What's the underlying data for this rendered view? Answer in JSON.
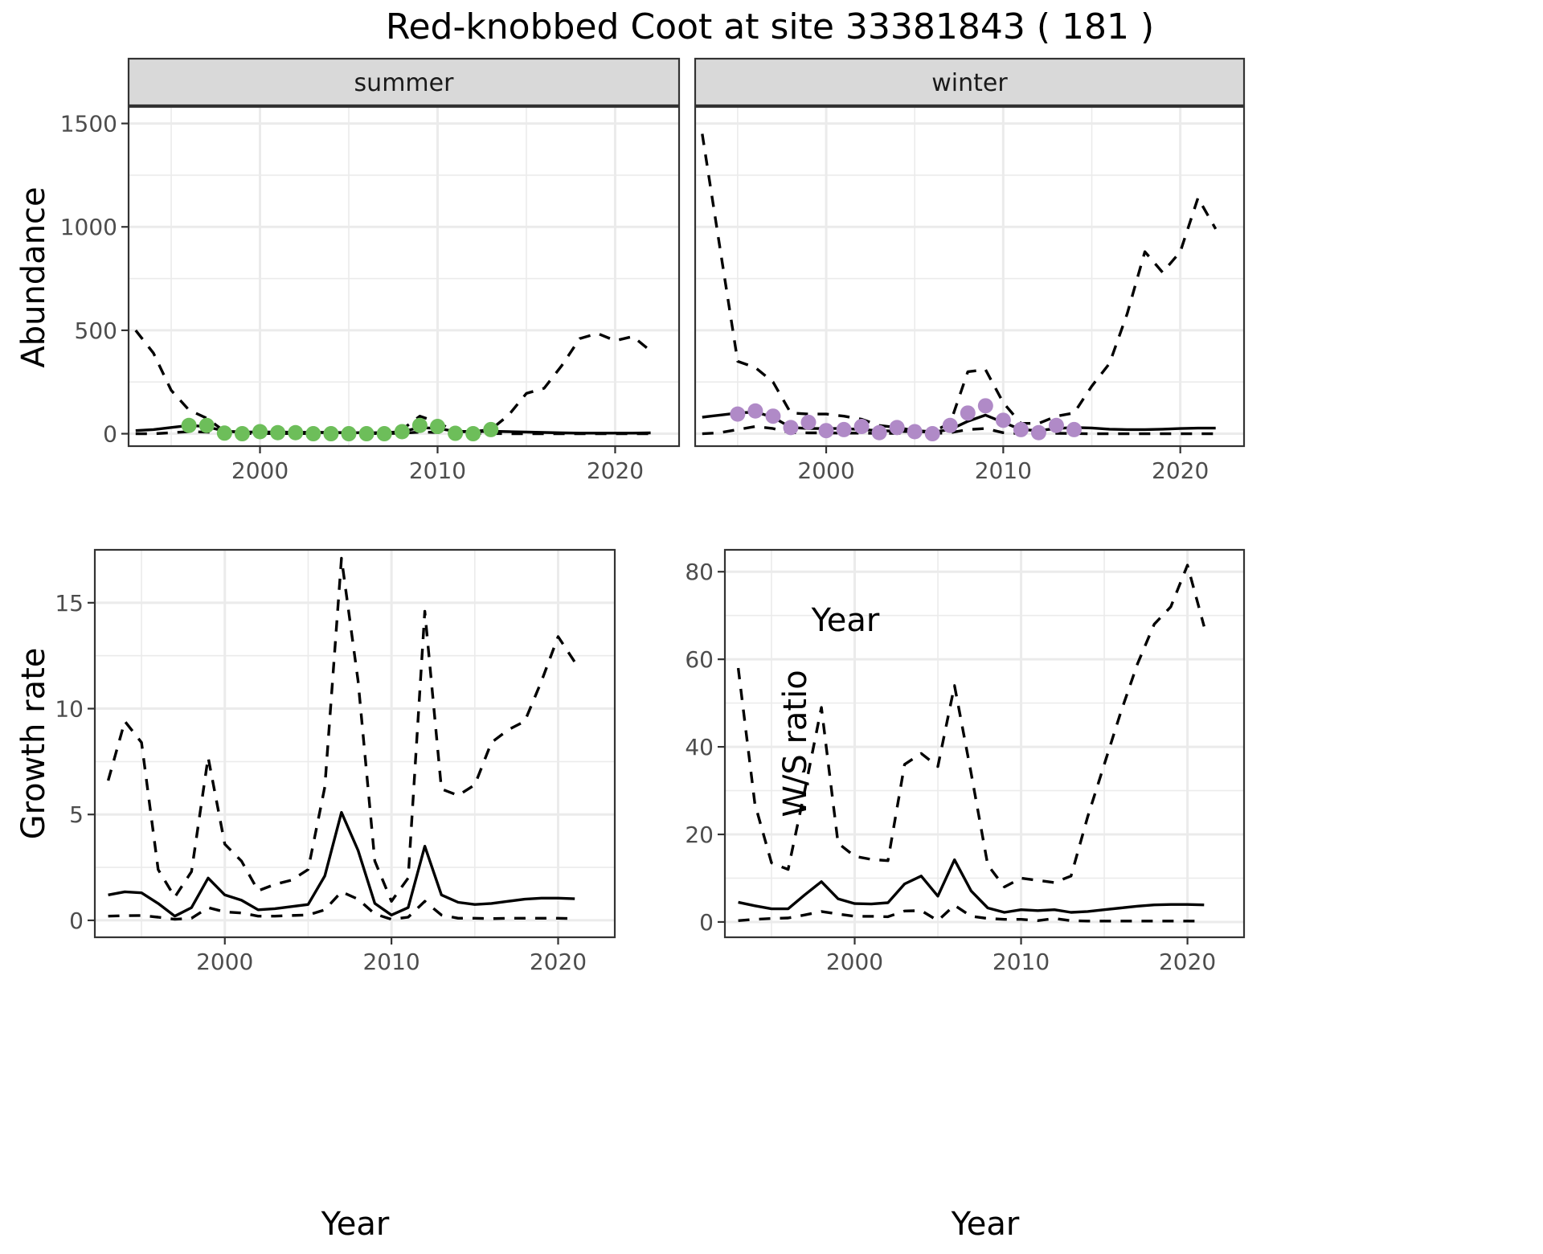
{
  "title": "Red-knobbed Coot at site 33381843 ( 181 )",
  "chart_data": [
    {
      "type": "line",
      "panel": "summer",
      "facet_label": "summer",
      "xlabel": "Year",
      "ylabel": "Abundance",
      "xlim": [
        1992.6,
        2023.6
      ],
      "ylim": [
        -60,
        1580
      ],
      "xticks": [
        2000,
        2010,
        2020
      ],
      "yticks": [
        0,
        500,
        1000,
        1500
      ],
      "grid": true,
      "point_color": "#6dbe5a",
      "x": [
        1993,
        1994,
        1995,
        1996,
        1997,
        1998,
        1999,
        2000,
        2001,
        2002,
        2003,
        2004,
        2005,
        2006,
        2007,
        2008,
        2009,
        2010,
        2011,
        2012,
        2013,
        2014,
        2015,
        2016,
        2017,
        2018,
        2019,
        2020,
        2021,
        2022
      ],
      "series": [
        {
          "name": "estimate",
          "style": "solid",
          "values": [
            15,
            20,
            30,
            40,
            35,
            12,
            8,
            8,
            8,
            7,
            6,
            6,
            5,
            5,
            5,
            10,
            30,
            25,
            12,
            10,
            12,
            10,
            8,
            6,
            4,
            3,
            3,
            3,
            3,
            4
          ]
        },
        {
          "name": "upper",
          "style": "dashed",
          "values": [
            500,
            390,
            210,
            115,
            75,
            12,
            8,
            8,
            8,
            7,
            6,
            6,
            5,
            5,
            5,
            20,
            85,
            55,
            10,
            10,
            20,
            90,
            195,
            220,
            330,
            460,
            485,
            450,
            470,
            400
          ]
        },
        {
          "name": "lower",
          "style": "dashed",
          "values": [
            0,
            0,
            5,
            10,
            8,
            2,
            1,
            1,
            1,
            1,
            1,
            1,
            1,
            1,
            1,
            2,
            8,
            6,
            1,
            1,
            1,
            0,
            0,
            0,
            0,
            0,
            0,
            0,
            0,
            0
          ]
        }
      ],
      "points": {
        "x": [
          1996,
          1997,
          1998,
          1999,
          2000,
          2001,
          2002,
          2003,
          2004,
          2005,
          2006,
          2007,
          2008,
          2009,
          2010,
          2011,
          2012,
          2013
        ],
        "y": [
          40,
          40,
          3,
          0,
          10,
          5,
          5,
          0,
          0,
          0,
          0,
          0,
          10,
          40,
          35,
          2,
          0,
          20
        ]
      }
    },
    {
      "type": "line",
      "panel": "winter",
      "facet_label": "winter",
      "xlabel": "Year",
      "ylabel": "Abundance",
      "xlim": [
        1992.6,
        2023.6
      ],
      "ylim": [
        -60,
        1580
      ],
      "xticks": [
        2000,
        2010,
        2020
      ],
      "yticks": [
        0,
        500,
        1000,
        1500
      ],
      "grid": true,
      "point_color": "#b08ac7",
      "x": [
        1993,
        1994,
        1995,
        1996,
        1997,
        1998,
        1999,
        2000,
        2001,
        2002,
        2003,
        2004,
        2005,
        2006,
        2007,
        2008,
        2009,
        2010,
        2011,
        2012,
        2013,
        2014,
        2015,
        2016,
        2017,
        2018,
        2019,
        2020,
        2021,
        2022
      ],
      "series": [
        {
          "name": "estimate",
          "style": "solid",
          "values": [
            80,
            90,
            100,
            105,
            80,
            30,
            25,
            25,
            25,
            20,
            15,
            12,
            10,
            8,
            20,
            60,
            90,
            55,
            20,
            15,
            25,
            30,
            28,
            22,
            20,
            20,
            22,
            25,
            27,
            27
          ]
        },
        {
          "name": "upper",
          "style": "dashed",
          "values": [
            1450,
            900,
            350,
            320,
            250,
            100,
            95,
            95,
            85,
            70,
            40,
            30,
            15,
            10,
            50,
            300,
            310,
            150,
            50,
            50,
            85,
            100,
            230,
            340,
            580,
            880,
            780,
            880,
            1140,
            990
          ]
        },
        {
          "name": "lower",
          "style": "dashed",
          "values": [
            0,
            5,
            20,
            35,
            25,
            5,
            4,
            4,
            3,
            3,
            2,
            2,
            2,
            1,
            5,
            20,
            25,
            5,
            1,
            1,
            2,
            1,
            0,
            0,
            0,
            0,
            0,
            0,
            0,
            0
          ]
        }
      ],
      "points": {
        "x": [
          1995,
          1996,
          1997,
          1998,
          1999,
          2000,
          2001,
          2002,
          2003,
          2004,
          2005,
          2006,
          2007,
          2008,
          2009,
          2010,
          2011,
          2012,
          2013,
          2014
        ],
        "y": [
          95,
          110,
          85,
          30,
          55,
          15,
          20,
          35,
          5,
          30,
          10,
          0,
          40,
          100,
          135,
          65,
          20,
          5,
          40,
          20
        ]
      }
    },
    {
      "type": "line",
      "panel": "growth",
      "xlabel": "Year",
      "ylabel": "Growth rate",
      "xlim": [
        1992.2,
        2023.4
      ],
      "ylim": [
        -0.8,
        17.5
      ],
      "xticks": [
        2000,
        2010,
        2020
      ],
      "yticks": [
        0,
        5,
        10,
        15
      ],
      "grid": true,
      "x": [
        1993,
        1994,
        1995,
        1996,
        1997,
        1998,
        1999,
        2000,
        2001,
        2002,
        2003,
        2004,
        2005,
        2006,
        2007,
        2008,
        2009,
        2010,
        2011,
        2012,
        2013,
        2014,
        2015,
        2016,
        2017,
        2018,
        2019,
        2020,
        2021
      ],
      "series": [
        {
          "name": "estimate",
          "style": "solid",
          "values": [
            1.2,
            1.35,
            1.3,
            0.8,
            0.2,
            0.6,
            2.0,
            1.2,
            0.95,
            0.5,
            0.55,
            0.65,
            0.75,
            2.1,
            5.1,
            3.3,
            0.8,
            0.25,
            0.6,
            3.5,
            1.2,
            0.85,
            0.75,
            0.8,
            0.9,
            1.0,
            1.05,
            1.05,
            1.02
          ]
        },
        {
          "name": "upper",
          "style": "dashed",
          "values": [
            6.6,
            9.4,
            8.4,
            2.4,
            1.1,
            2.3,
            7.7,
            3.6,
            2.8,
            1.4,
            1.7,
            1.9,
            2.4,
            6.3,
            17.1,
            11.3,
            2.8,
            0.9,
            2.0,
            14.6,
            6.2,
            5.9,
            6.4,
            8.4,
            9.0,
            9.4,
            11.3,
            13.4,
            12.2
          ]
        },
        {
          "name": "lower",
          "style": "dashed",
          "values": [
            0.2,
            0.22,
            0.23,
            0.15,
            0.05,
            0.1,
            0.6,
            0.4,
            0.35,
            0.2,
            0.2,
            0.23,
            0.25,
            0.5,
            1.35,
            1.0,
            0.3,
            0.05,
            0.15,
            0.9,
            0.25,
            0.1,
            0.1,
            0.08,
            0.1,
            0.1,
            0.1,
            0.1,
            0.08
          ]
        }
      ]
    },
    {
      "type": "line",
      "panel": "ws_ratio",
      "xlabel": "Year",
      "ylabel": "W/S ratio",
      "xlim": [
        1992.2,
        2023.4
      ],
      "ylim": [
        -3.5,
        85
      ],
      "xticks": [
        2000,
        2010,
        2020
      ],
      "yticks": [
        0,
        20,
        40,
        60,
        80
      ],
      "grid": true,
      "x": [
        1993,
        1994,
        1995,
        1996,
        1997,
        1998,
        1999,
        2000,
        2001,
        2002,
        2003,
        2004,
        2005,
        2006,
        2007,
        2008,
        2009,
        2010,
        2011,
        2012,
        2013,
        2014,
        2015,
        2016,
        2017,
        2018,
        2019,
        2020,
        2021
      ],
      "series": [
        {
          "name": "estimate",
          "style": "solid",
          "values": [
            4.5,
            3.7,
            3.0,
            3.0,
            6.2,
            9.2,
            5.3,
            4.2,
            4.1,
            4.4,
            8.7,
            10.5,
            5.9,
            14.2,
            7.1,
            3.2,
            2.2,
            2.8,
            2.6,
            2.8,
            2.2,
            2.4,
            2.8,
            3.2,
            3.6,
            3.9,
            4.0,
            4.0,
            3.9
          ]
        },
        {
          "name": "upper",
          "style": "dashed",
          "values": [
            58.0,
            27.0,
            13.5,
            12.0,
            30.0,
            49.0,
            18.0,
            15.0,
            14.3,
            14.0,
            36.0,
            38.5,
            35.5,
            54.0,
            34.0,
            13.0,
            8.0,
            10.0,
            9.5,
            9.0,
            10.5,
            24.0,
            36.0,
            48.0,
            59.0,
            68.0,
            72.0,
            81.5,
            67.5
          ]
        },
        {
          "name": "lower",
          "style": "dashed",
          "values": [
            0.3,
            0.6,
            0.8,
            0.9,
            1.6,
            2.4,
            1.8,
            1.3,
            1.3,
            1.2,
            2.5,
            2.6,
            0.3,
            3.8,
            1.3,
            0.8,
            0.6,
            0.6,
            0.3,
            0.8,
            0.3,
            0.2,
            0.2,
            0.2,
            0.2,
            0.2,
            0.2,
            0.2,
            0.2
          ]
        }
      ]
    }
  ],
  "facets": {
    "summer": "summer",
    "winter": "winter"
  },
  "axes": {
    "top_xlabel": "Year",
    "top_ylabel": "Abundance",
    "growth_xlabel": "Year",
    "growth_ylabel": "Growth rate",
    "ratio_xlabel": "Year",
    "ratio_ylabel": "W/S ratio"
  }
}
